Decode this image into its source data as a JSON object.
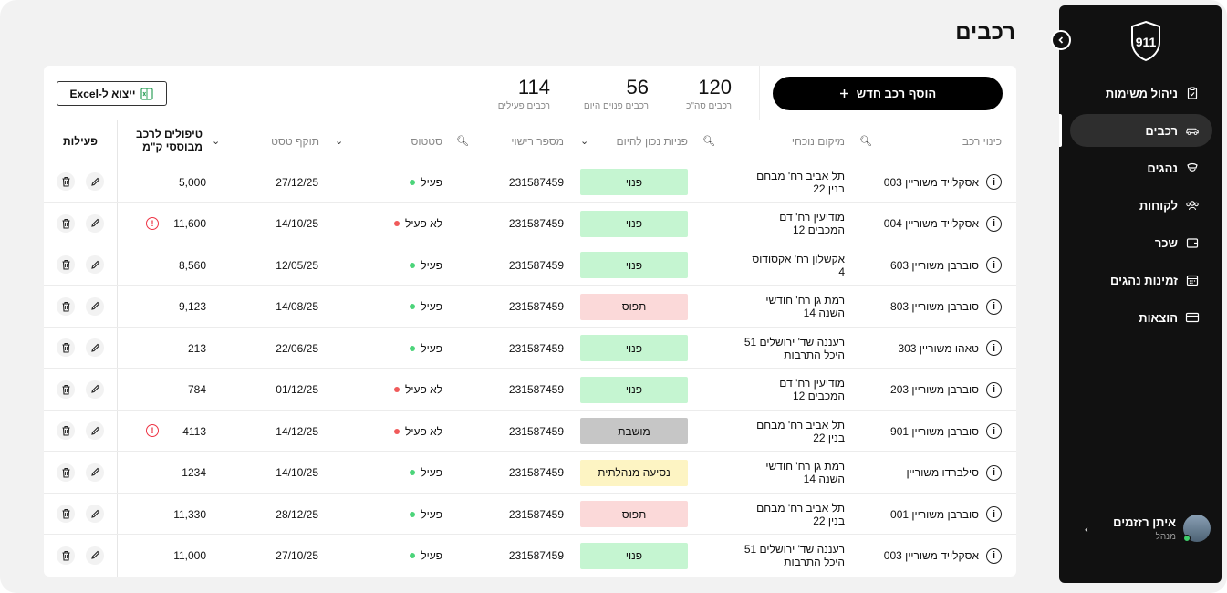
{
  "page": {
    "title": "רכבים"
  },
  "sidebar": {
    "logo_text": "911",
    "items": [
      {
        "label": "ניהול משימות",
        "icon": "clipboard-icon",
        "active": false
      },
      {
        "label": "רכבים",
        "icon": "car-icon",
        "active": true
      },
      {
        "label": "נהגים",
        "icon": "driver-icon",
        "active": false
      },
      {
        "label": "לקוחות",
        "icon": "users-icon",
        "active": false
      },
      {
        "label": "שכר",
        "icon": "wallet-icon",
        "active": false
      },
      {
        "label": "זמינות נהגים",
        "icon": "calendar-icon",
        "active": false
      },
      {
        "label": "הוצאות",
        "icon": "credit-card-icon",
        "active": false
      }
    ],
    "user": {
      "name": "איתן רזזמים",
      "role": "מנהל"
    }
  },
  "toolbar": {
    "add_label": "הוסף רכב חדש",
    "export_label": "ייצוא ל-Excel"
  },
  "stats": [
    {
      "value": "120",
      "label": "רכבים סה\"כ"
    },
    {
      "value": "56",
      "label": "רכבים פנוים היום"
    },
    {
      "value": "114",
      "label": "רכבים פעילים"
    }
  ],
  "columns": {
    "name": "כינוי רכב",
    "location": "מיקום נוכחי",
    "availability": "פניות נכון להיום",
    "plate": "מספר רישוי",
    "status": "סטטוס",
    "test": "תוקף טסט",
    "km": "טיפולים לרכב מבוססי ק\"מ",
    "actions": "פעילות"
  },
  "colors": {
    "free_bg": "#c5f5d1",
    "busy_bg": "#fbd9d9",
    "parked_bg": "#c6c6c6",
    "driving_bg": "#fdf4c3",
    "active_dot": "#4cd47a",
    "inactive_dot": "#f05a5a"
  },
  "rows": [
    {
      "name": "אסקלייד משוריין 003",
      "loc1": "תל אביב רח' מבחם",
      "loc2": "בנין 22",
      "avail": "פנוי",
      "avail_type": "free",
      "plate": "231587459",
      "status": "פעיל",
      "active": true,
      "test": "27/12/25",
      "km": "5,000",
      "warn": false
    },
    {
      "name": "אסקלייד משוריין 004",
      "loc1": "מודיעין רח' דם",
      "loc2": "המכבים 12",
      "avail": "פנוי",
      "avail_type": "free",
      "plate": "231587459",
      "status": "לא פעיל",
      "active": false,
      "test": "14/10/25",
      "km": "11,600",
      "warn": true
    },
    {
      "name": "סוברבן משוריין 603",
      "loc1": "אקשלון רח' אקסודוס",
      "loc2": "4",
      "avail": "פנוי",
      "avail_type": "free",
      "plate": "231587459",
      "status": "פעיל",
      "active": true,
      "test": "12/05/25",
      "km": "8,560",
      "warn": false
    },
    {
      "name": "סוברבן משוריין 803",
      "loc1": "רמת גן רח' חודשי",
      "loc2": "השנה 14",
      "avail": "תפוס",
      "avail_type": "busy",
      "plate": "231587459",
      "status": "פעיל",
      "active": true,
      "test": "14/08/25",
      "km": "9,123",
      "warn": false
    },
    {
      "name": "טאהו משוריין 303",
      "loc1": "רעננה שד' ירושלים 51",
      "loc2": "היכל התרבות",
      "avail": "פנוי",
      "avail_type": "free",
      "plate": "231587459",
      "status": "פעיל",
      "active": true,
      "test": "22/06/25",
      "km": "213",
      "warn": false
    },
    {
      "name": "סוברבן משוריין 203",
      "loc1": "מודיעין רח' דם",
      "loc2": "המכבים 12",
      "avail": "פנוי",
      "avail_type": "free",
      "plate": "231587459",
      "status": "לא פעיל",
      "active": false,
      "test": "01/12/25",
      "km": "784",
      "warn": false
    },
    {
      "name": "סוברבן משוריין 901",
      "loc1": "תל אביב רח' מבחם",
      "loc2": "בנין 22",
      "avail": "מושבת",
      "avail_type": "parked",
      "plate": "231587459",
      "status": "לא פעיל",
      "active": false,
      "test": "14/12/25",
      "km": "4113",
      "warn": true
    },
    {
      "name": "סילברדו משוריין",
      "loc1": "רמת גן רח' חודשי",
      "loc2": "השנה 14",
      "avail": "נסיעה מנהלתית",
      "avail_type": "driving",
      "plate": "231587459",
      "status": "פעיל",
      "active": true,
      "test": "14/10/25",
      "km": "1234",
      "warn": false
    },
    {
      "name": "סוברבן משוריין 001",
      "loc1": "תל אביב רח' מבחם",
      "loc2": "בנין 22",
      "avail": "תפוס",
      "avail_type": "busy",
      "plate": "231587459",
      "status": "פעיל",
      "active": true,
      "test": "28/12/25",
      "km": "11,330",
      "warn": false
    },
    {
      "name": "אסקלייד משוריין 003",
      "loc1": "רעננה שד' ירושלים 51",
      "loc2": "היכל התרבות",
      "avail": "פנוי",
      "avail_type": "free",
      "plate": "231587459",
      "status": "פעיל",
      "active": true,
      "test": "27/10/25",
      "km": "11,000",
      "warn": false
    }
  ]
}
